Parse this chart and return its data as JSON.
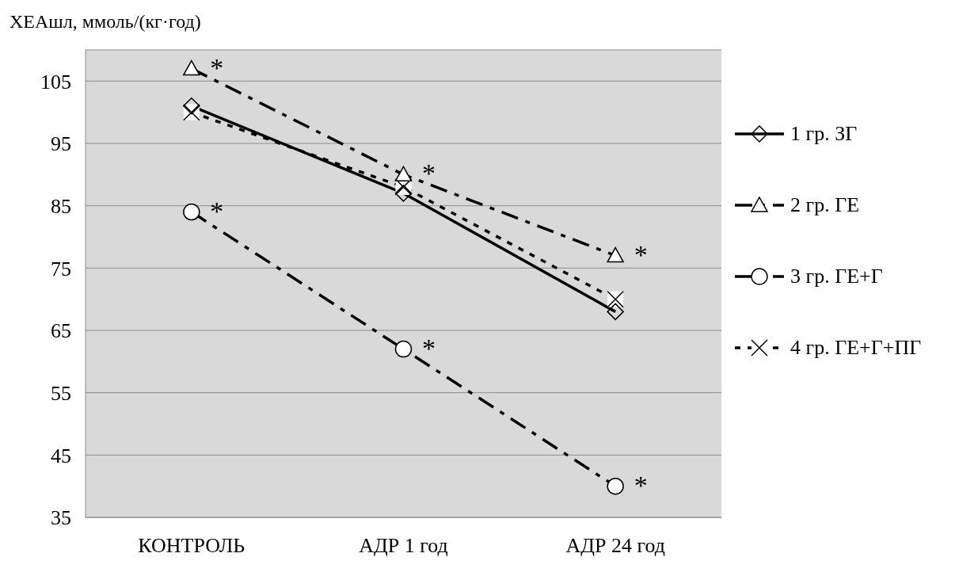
{
  "chart_data": {
    "type": "line",
    "ylabel": "ХЕАшл, ммоль/(кг·год)",
    "categories": [
      "КОНТРОЛЬ",
      "АДР 1 год",
      "АДР 24 год"
    ],
    "series": [
      {
        "name": "1 гр. ЗГ",
        "color": "#000000",
        "values": [
          101,
          87,
          68
        ],
        "marker": "diamond",
        "line_style": "solid"
      },
      {
        "name": "2 гр. ГЕ",
        "color": "#000000",
        "values": [
          107,
          90,
          77
        ],
        "marker": "triangle",
        "line_style": "dashed"
      },
      {
        "name": "3 гр. ГЕ+Г",
        "color": "#000000",
        "values": [
          84,
          62,
          40
        ],
        "marker": "circle",
        "line_style": "dashed"
      },
      {
        "name": "4 гр. ГЕ+Г+ПГ",
        "color": "#000000",
        "values": [
          100,
          88,
          70
        ],
        "marker": "cross",
        "line_style": "dotted"
      }
    ],
    "ylim": [
      35,
      110
    ],
    "yticks": [
      35,
      45,
      55,
      65,
      75,
      85,
      95,
      105
    ],
    "grid": "y",
    "legend": "right",
    "annotations": [
      {
        "text": "*",
        "x": "КОНТРОЛЬ",
        "y": 107
      },
      {
        "text": "*",
        "x": "КОНТРОЛЬ",
        "y": 84
      },
      {
        "text": "*",
        "x": "АДР 1 год",
        "y": 90
      },
      {
        "text": "*",
        "x": "АДР 1 год",
        "y": 62
      },
      {
        "text": "*",
        "x": "АДР 24 год",
        "y": 77
      },
      {
        "text": "*",
        "x": "АДР 24 год",
        "y": 40
      }
    ]
  }
}
